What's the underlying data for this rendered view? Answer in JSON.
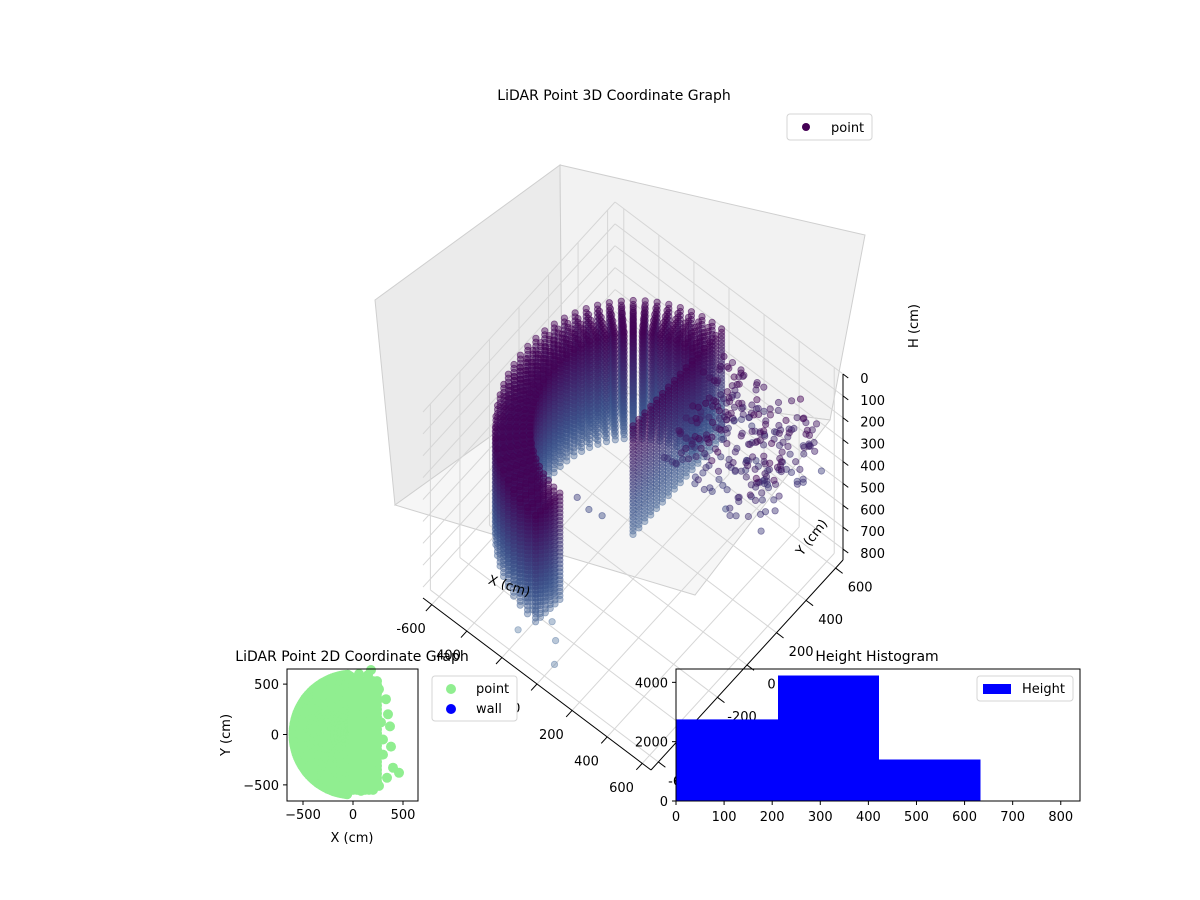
{
  "figure": {
    "background": "#ffffff"
  },
  "chart_data": [
    {
      "type": "scatter",
      "projection": "3d",
      "title": "LiDAR Point 3D Coordinate Graph",
      "xlabel": "X (cm)",
      "ylabel": "Y (cm)",
      "zlabel": "H (cm)",
      "xlim": [
        -650,
        650
      ],
      "ylim": [
        -650,
        650
      ],
      "zlim": [
        850,
        0
      ],
      "x_ticks": [
        -600,
        -400,
        -200,
        0,
        200,
        400,
        600
      ],
      "y_ticks": [
        -600,
        -400,
        -200,
        0,
        200,
        400,
        600
      ],
      "z_ticks": [
        0,
        100,
        200,
        300,
        400,
        500,
        600,
        700,
        800
      ],
      "grid": true,
      "legend": {
        "placement": "top-right",
        "entries": [
          "point"
        ]
      },
      "colormap": {
        "near_top": "#440154",
        "mid": "#3b528b",
        "bottom": "#6f8fb0"
      },
      "series": [
        {
          "name": "point",
          "shape": "half-cylinder shell with scattered outliers",
          "radius_range": [
            450,
            600
          ],
          "angle_range_deg": [
            95,
            265
          ],
          "height_range": [
            150,
            650
          ],
          "points": [
            [
              100,
              -650,
              700
            ],
            [
              -150,
              -600,
              730
            ],
            [
              -260,
              -470,
              680
            ],
            [
              -330,
              -430,
              690
            ],
            [
              -200,
              -520,
              640
            ],
            [
              -100,
              -540,
              660
            ],
            [
              30,
              -560,
              700
            ],
            [
              -350,
              -360,
              620
            ],
            [
              -40,
              -500,
              700
            ],
            [
              -300,
              -300,
              600
            ],
            [
              610,
              230,
              200
            ],
            [
              560,
              300,
              300
            ],
            [
              480,
              320,
              360
            ],
            [
              520,
              220,
              260
            ],
            [
              380,
              410,
              250
            ],
            [
              300,
              470,
              340
            ],
            [
              420,
              360,
              420
            ],
            [
              250,
              540,
              210
            ],
            [
              330,
              300,
              380
            ],
            [
              140,
              420,
              340
            ],
            [
              50,
              460,
              240
            ],
            [
              210,
              470,
              180
            ],
            [
              470,
              160,
              310
            ],
            [
              530,
              380,
              230
            ],
            [
              -150,
              -200,
              420
            ],
            [
              -100,
              -180,
              460
            ],
            [
              -50,
              -150,
              480
            ],
            [
              230,
              560,
              260
            ],
            [
              360,
              200,
              460
            ],
            [
              280,
              250,
              410
            ]
          ]
        }
      ]
    },
    {
      "type": "scatter",
      "title": "LiDAR Point 2D Coordinate Graph",
      "xlabel": "X (cm)",
      "ylabel": "Y (cm)",
      "xlim": [
        -660,
        650
      ],
      "ylim": [
        -660,
        650
      ],
      "x_ticks": [
        -500,
        0,
        500
      ],
      "y_ticks": [
        -500,
        0,
        500
      ],
      "x_tick_labels": [
        "−500",
        "0",
        "500"
      ],
      "y_tick_labels": [
        "−500",
        "0",
        "500"
      ],
      "legend": {
        "placement": "right-outside",
        "entries": [
          "point",
          "wall"
        ]
      },
      "series": [
        {
          "name": "point",
          "color": "#90ee90",
          "shape": "filled half-disc",
          "points": [
            [
              -30,
              580
            ],
            [
              20,
              560
            ],
            [
              60,
              600
            ],
            [
              150,
              590
            ],
            [
              180,
              640
            ],
            [
              330,
              350
            ],
            [
              260,
              450
            ],
            [
              350,
              200
            ],
            [
              280,
              120
            ],
            [
              370,
              80
            ],
            [
              300,
              -50
            ],
            [
              380,
              -120
            ],
            [
              300,
              -200
            ],
            [
              400,
              -330
            ],
            [
              460,
              -380
            ],
            [
              340,
              -430
            ],
            [
              260,
              -510
            ],
            [
              80,
              -560
            ],
            [
              -250,
              -420
            ],
            [
              -300,
              300
            ],
            [
              -520,
              0
            ],
            [
              -450,
              -200
            ],
            [
              -400,
              250
            ],
            [
              100,
              200
            ],
            [
              180,
              -300
            ]
          ]
        },
        {
          "name": "wall",
          "color": "#0000ff",
          "points": []
        }
      ]
    },
    {
      "type": "bar",
      "subtype": "histogram",
      "title": "Height Histogram",
      "xlabel": "",
      "ylabel": "",
      "xlim": [
        0,
        840
      ],
      "ylim": [
        0,
        4450
      ],
      "x_ticks": [
        0,
        100,
        200,
        300,
        400,
        500,
        600,
        700,
        800
      ],
      "y_ticks": [
        0,
        2000,
        4000
      ],
      "legend": {
        "placement": "top-right",
        "entries": [
          "Height"
        ]
      },
      "color": "#0000ff",
      "series": [
        {
          "name": "Height",
          "bins": [
            {
              "from": 0,
              "to": 212,
              "count": 2750
            },
            {
              "from": 212,
              "to": 422,
              "count": 4230
            },
            {
              "from": 422,
              "to": 633,
              "count": 1400
            },
            {
              "from": 633,
              "to": 840,
              "count": 0
            }
          ]
        }
      ]
    }
  ]
}
